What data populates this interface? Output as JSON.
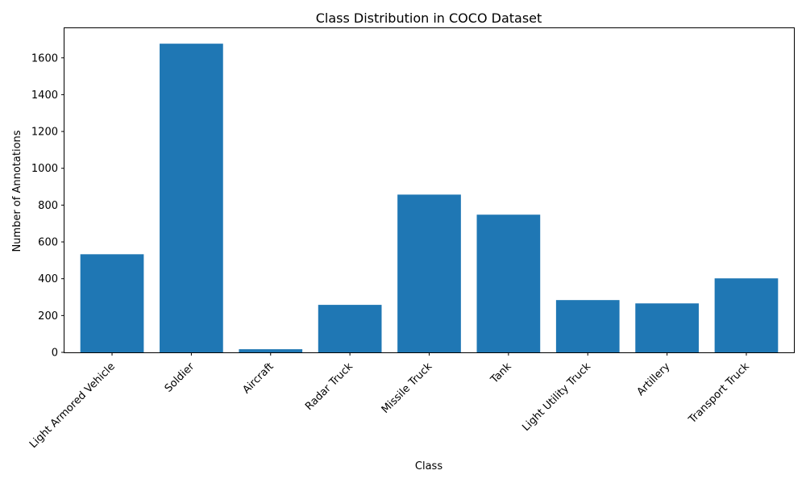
{
  "chart_data": {
    "type": "bar",
    "title": "Class Distribution in COCO Dataset",
    "xlabel": "Class",
    "ylabel": "Number of Annotations",
    "categories": [
      "Light Armored Vehicle",
      "Soldier",
      "Aircraft",
      "Radar Truck",
      "Missile Truck",
      "Tank",
      "Light Utility Truck",
      "Artillery",
      "Transport Truck"
    ],
    "values": [
      533,
      1677,
      17,
      258,
      857,
      748,
      284,
      266,
      402
    ],
    "ylim": [
      0,
      1761
    ],
    "yticks": [
      0,
      200,
      400,
      600,
      800,
      1000,
      1200,
      1400,
      1600
    ],
    "bar_color": "#1f77b4",
    "grid": false,
    "legend": "none"
  }
}
